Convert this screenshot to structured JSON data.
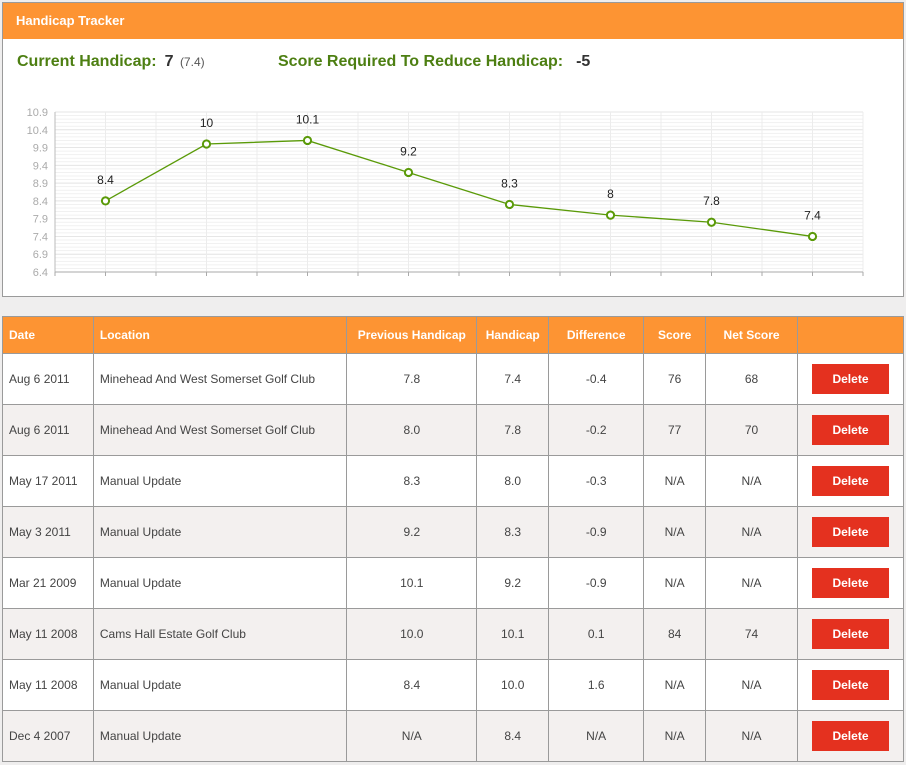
{
  "panel": {
    "title": "Handicap Tracker",
    "current_handicap_label": "Current Handicap:",
    "current_handicap_value": "7",
    "current_handicap_exact": "(7.4)",
    "score_required_label": "Score Required To Reduce Handicap:",
    "score_required_value": "-5"
  },
  "colors": {
    "header_orange": "#fd9433",
    "label_green": "#4d7f12",
    "line_green": "#5a9a08",
    "delete_red": "#e4311f"
  },
  "chart_data": {
    "type": "line",
    "title": "",
    "xlabel": "",
    "ylabel": "",
    "x": [
      1,
      2,
      3,
      4,
      5,
      6,
      7,
      8
    ],
    "values": [
      8.4,
      10,
      10.1,
      9.2,
      8.3,
      8,
      7.8,
      7.4
    ],
    "data_labels": [
      "8.4",
      "10",
      "10.1",
      "9.2",
      "8.3",
      "8",
      "7.8",
      "7.4"
    ],
    "y_ticks": [
      "10.9",
      "10.4",
      "9.9",
      "9.4",
      "8.9",
      "8.4",
      "7.9",
      "7.4",
      "6.9",
      "6.4"
    ],
    "ylim": [
      6.4,
      10.9
    ],
    "grid": true,
    "legend": "none"
  },
  "table": {
    "headers": [
      "Date",
      "Location",
      "Previous Handicap",
      "Handicap",
      "Difference",
      "Score",
      "Net Score",
      ""
    ],
    "delete_label": "Delete",
    "rows": [
      {
        "date": "Aug 6 2011",
        "location": "Minehead And West Somerset Golf Club",
        "previous": "7.8",
        "handicap": "7.4",
        "difference": "-0.4",
        "score": "76",
        "net": "68"
      },
      {
        "date": "Aug 6 2011",
        "location": "Minehead And West Somerset Golf Club",
        "previous": "8.0",
        "handicap": "7.8",
        "difference": "-0.2",
        "score": "77",
        "net": "70"
      },
      {
        "date": "May 17 2011",
        "location": "Manual Update",
        "previous": "8.3",
        "handicap": "8.0",
        "difference": "-0.3",
        "score": "N/A",
        "net": "N/A"
      },
      {
        "date": "May 3 2011",
        "location": "Manual Update",
        "previous": "9.2",
        "handicap": "8.3",
        "difference": "-0.9",
        "score": "N/A",
        "net": "N/A"
      },
      {
        "date": "Mar 21 2009",
        "location": "Manual Update",
        "previous": "10.1",
        "handicap": "9.2",
        "difference": "-0.9",
        "score": "N/A",
        "net": "N/A"
      },
      {
        "date": "May 11 2008",
        "location": "Cams Hall Estate Golf Club",
        "previous": "10.0",
        "handicap": "10.1",
        "difference": "0.1",
        "score": "84",
        "net": "74"
      },
      {
        "date": "May 11 2008",
        "location": "Manual Update",
        "previous": "8.4",
        "handicap": "10.0",
        "difference": "1.6",
        "score": "N/A",
        "net": "N/A"
      },
      {
        "date": "Dec 4 2007",
        "location": "Manual Update",
        "previous": "N/A",
        "handicap": "8.4",
        "difference": "N/A",
        "score": "N/A",
        "net": "N/A"
      }
    ]
  }
}
